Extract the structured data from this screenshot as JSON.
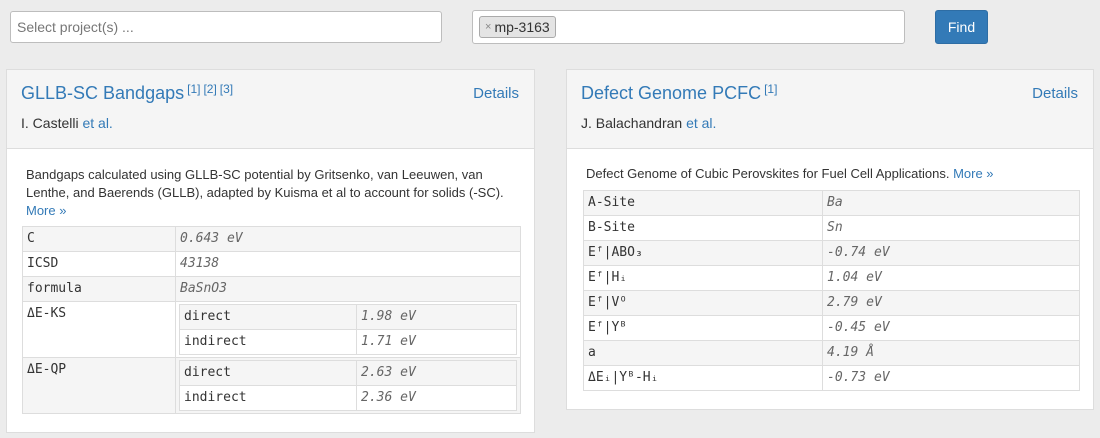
{
  "search": {
    "placeholder": "Select project(s) ..."
  },
  "ids": {
    "chip_label": "mp-3163"
  },
  "find_button": "Find",
  "cards": [
    {
      "title": "GLLB-SC Bandgaps",
      "refs": [
        "[1]",
        "[2]",
        "[3]"
      ],
      "details": "Details",
      "author": "I. Castelli",
      "et_al": "et al.",
      "description": "Bandgaps calculated using GLLB-SC potential by Gritsenko, van Leeuwen, van Lenthe, and Baerends (GLLB), adapted by Kuisma et al to account for solids (-SC).",
      "more": "More »",
      "rows": [
        {
          "key": "C",
          "value": "0.643 eV"
        },
        {
          "key": "ICSD",
          "value": "43138"
        },
        {
          "key": "formula",
          "value": "BaSnO3"
        }
      ],
      "nested": [
        {
          "key": "ΔE-KS",
          "rows": [
            {
              "key": "direct",
              "value": "1.98 eV"
            },
            {
              "key": "indirect",
              "value": "1.71 eV"
            }
          ]
        },
        {
          "key": "ΔE-QP",
          "rows": [
            {
              "key": "direct",
              "value": "2.63 eV"
            },
            {
              "key": "indirect",
              "value": "2.36 eV"
            }
          ]
        }
      ]
    },
    {
      "title": "Defect Genome PCFC",
      "refs": [
        "[1]"
      ],
      "details": "Details",
      "author": "J. Balachandran",
      "et_al": "et al.",
      "description": "Defect Genome of Cubic Perovskites for Fuel Cell Applications.",
      "more": "More »",
      "rows": [
        {
          "key": "A-Site",
          "value": "Ba"
        },
        {
          "key": "B-Site",
          "value": "Sn"
        },
        {
          "key": "Eᶠ|ABO₃",
          "value": "-0.74 eV"
        },
        {
          "key": "Eᶠ|Hᵢ",
          "value": "1.04 eV"
        },
        {
          "key": "Eᶠ|Vᴼ",
          "value": "2.79 eV"
        },
        {
          "key": "Eᶠ|Yᴮ",
          "value": "-0.45 eV"
        },
        {
          "key": "a",
          "value": "4.19 Å"
        },
        {
          "key": "ΔEᵢ|Yᴮ-Hᵢ",
          "value": "-0.73 eV"
        }
      ]
    }
  ]
}
